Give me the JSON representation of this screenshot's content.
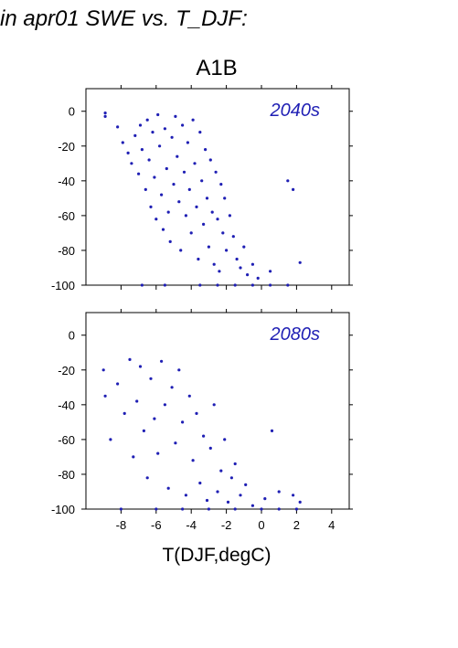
{
  "header_title": "in apr01 SWE vs. T_DJF:",
  "scenario_label": "A1B",
  "xlabel": "T(DJF,degC)",
  "series_color": "#1f1fb4",
  "chart_data": [
    {
      "type": "scatter",
      "period_label": "2040s",
      "xlim": [
        -10,
        5
      ],
      "ylim": [
        -100,
        13
      ],
      "x_ticks": [
        -8,
        -6,
        -4,
        -2,
        0,
        2,
        4
      ],
      "y_ticks": [
        0,
        -20,
        -40,
        -60,
        -80,
        -100
      ],
      "x_tick_labels_shown": false,
      "grid": false,
      "points": [
        [
          -8.9,
          -1
        ],
        [
          -8.9,
          -3
        ],
        [
          -8.2,
          -9
        ],
        [
          -7.9,
          -18
        ],
        [
          -7.6,
          -24
        ],
        [
          -7.4,
          -30
        ],
        [
          -7.2,
          -14
        ],
        [
          -7.0,
          -36
        ],
        [
          -6.9,
          -8
        ],
        [
          -6.8,
          -22
        ],
        [
          -6.6,
          -45
        ],
        [
          -6.5,
          -5
        ],
        [
          -6.4,
          -28
        ],
        [
          -6.3,
          -55
        ],
        [
          -6.2,
          -12
        ],
        [
          -6.1,
          -38
        ],
        [
          -6.0,
          -62
        ],
        [
          -5.9,
          -2
        ],
        [
          -5.8,
          -20
        ],
        [
          -5.7,
          -48
        ],
        [
          -5.6,
          -68
        ],
        [
          -5.5,
          -10
        ],
        [
          -5.4,
          -33
        ],
        [
          -5.3,
          -58
        ],
        [
          -5.2,
          -75
        ],
        [
          -5.1,
          -15
        ],
        [
          -5.0,
          -42
        ],
        [
          -4.9,
          -3
        ],
        [
          -4.8,
          -26
        ],
        [
          -4.7,
          -52
        ],
        [
          -4.6,
          -80
        ],
        [
          -4.5,
          -8
        ],
        [
          -4.4,
          -35
        ],
        [
          -4.3,
          -60
        ],
        [
          -4.2,
          -18
        ],
        [
          -4.1,
          -45
        ],
        [
          -4.0,
          -70
        ],
        [
          -3.9,
          -5
        ],
        [
          -3.8,
          -30
        ],
        [
          -3.7,
          -55
        ],
        [
          -3.6,
          -85
        ],
        [
          -3.5,
          -12
        ],
        [
          -3.4,
          -40
        ],
        [
          -3.3,
          -65
        ],
        [
          -3.2,
          -22
        ],
        [
          -3.1,
          -50
        ],
        [
          -3.0,
          -78
        ],
        [
          -2.9,
          -28
        ],
        [
          -2.8,
          -58
        ],
        [
          -2.7,
          -88
        ],
        [
          -2.6,
          -35
        ],
        [
          -2.5,
          -62
        ],
        [
          -2.4,
          -92
        ],
        [
          -2.3,
          -42
        ],
        [
          -2.2,
          -70
        ],
        [
          -2.1,
          -50
        ],
        [
          -2.0,
          -80
        ],
        [
          -1.8,
          -60
        ],
        [
          -1.6,
          -72
        ],
        [
          -1.4,
          -85
        ],
        [
          -1.2,
          -90
        ],
        [
          -1.0,
          -78
        ],
        [
          -0.8,
          -94
        ],
        [
          -0.5,
          -88
        ],
        [
          -0.2,
          -96
        ],
        [
          0.5,
          -92
        ],
        [
          1.5,
          -40
        ],
        [
          1.8,
          -45
        ],
        [
          2.2,
          -87
        ],
        [
          -3.5,
          -100
        ],
        [
          -2.5,
          -100
        ],
        [
          -1.5,
          -100
        ],
        [
          -0.5,
          -100
        ],
        [
          0.5,
          -100
        ],
        [
          1.5,
          -100
        ],
        [
          -5.5,
          -100
        ],
        [
          -6.8,
          -100
        ]
      ]
    },
    {
      "type": "scatter",
      "period_label": "2080s",
      "xlim": [
        -10,
        5
      ],
      "ylim": [
        -100,
        13
      ],
      "x_ticks": [
        -8,
        -6,
        -4,
        -2,
        0,
        2,
        4
      ],
      "x_tick_labels": [
        "-8",
        "-6",
        "-4",
        "-2",
        "0",
        "2",
        "4"
      ],
      "y_ticks": [
        0,
        -20,
        -40,
        -60,
        -80,
        -100
      ],
      "grid": false,
      "points": [
        [
          -9.0,
          -20
        ],
        [
          -8.9,
          -35
        ],
        [
          -8.6,
          -60
        ],
        [
          -8.2,
          -28
        ],
        [
          -7.8,
          -45
        ],
        [
          -7.5,
          -14
        ],
        [
          -7.3,
          -70
        ],
        [
          -7.1,
          -38
        ],
        [
          -6.9,
          -18
        ],
        [
          -6.7,
          -55
        ],
        [
          -6.5,
          -82
        ],
        [
          -6.3,
          -25
        ],
        [
          -6.1,
          -48
        ],
        [
          -5.9,
          -68
        ],
        [
          -5.7,
          -15
        ],
        [
          -5.5,
          -40
        ],
        [
          -5.3,
          -88
        ],
        [
          -5.1,
          -30
        ],
        [
          -4.9,
          -62
        ],
        [
          -4.7,
          -20
        ],
        [
          -4.5,
          -50
        ],
        [
          -4.3,
          -92
        ],
        [
          -4.1,
          -35
        ],
        [
          -3.9,
          -72
        ],
        [
          -3.7,
          -45
        ],
        [
          -3.5,
          -85
        ],
        [
          -3.3,
          -58
        ],
        [
          -3.1,
          -95
        ],
        [
          -2.9,
          -65
        ],
        [
          -2.7,
          -40
        ],
        [
          -2.5,
          -90
        ],
        [
          -2.3,
          -78
        ],
        [
          -2.1,
          -60
        ],
        [
          -1.9,
          -96
        ],
        [
          -1.7,
          -82
        ],
        [
          -1.5,
          -74
        ],
        [
          -1.2,
          -92
        ],
        [
          -0.9,
          -86
        ],
        [
          -0.5,
          -98
        ],
        [
          0.2,
          -94
        ],
        [
          0.6,
          -55
        ],
        [
          1.0,
          -90
        ],
        [
          1.8,
          -92
        ],
        [
          2.2,
          -96
        ],
        [
          -6.0,
          -100
        ],
        [
          -4.5,
          -100
        ],
        [
          -3.0,
          -100
        ],
        [
          -1.5,
          -100
        ],
        [
          0.0,
          -100
        ],
        [
          1.0,
          -100
        ],
        [
          2.0,
          -100
        ],
        [
          -8.0,
          -100
        ]
      ]
    }
  ]
}
